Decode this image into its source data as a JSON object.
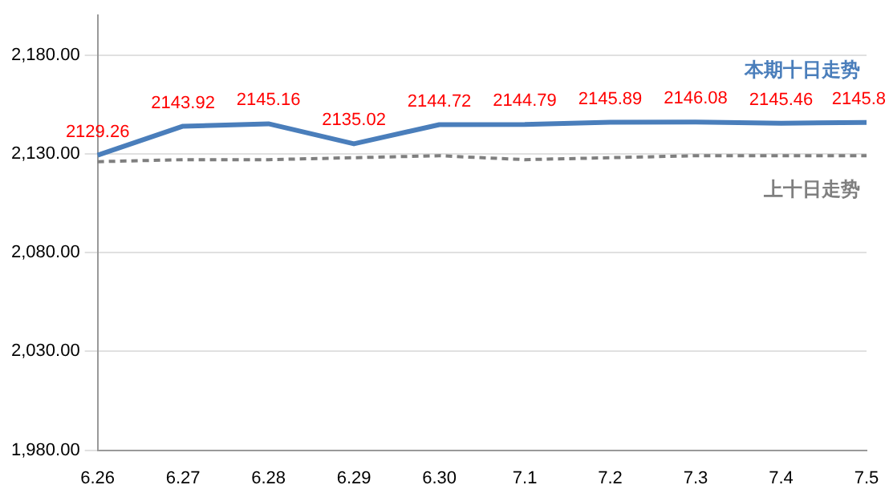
{
  "chart_data": {
    "type": "line",
    "categories": [
      "6.26",
      "6.27",
      "6.28",
      "6.29",
      "6.30",
      "7.1",
      "7.2",
      "7.3",
      "7.4",
      "7.5"
    ],
    "series": [
      {
        "name": "本期十日走势",
        "color": "#4a7ebb",
        "values": [
          2129.26,
          2143.92,
          2145.16,
          2135.02,
          2144.72,
          2144.79,
          2145.89,
          2146.08,
          2145.46,
          2145.8
        ],
        "value_labels": [
          "2129.26",
          "2143.92",
          "2145.16",
          "2135.02",
          "2144.72",
          "2144.79",
          "2145.89",
          "2146.08",
          "2145.46",
          "2145.8"
        ]
      },
      {
        "name": "上十日走势",
        "color": "#7f7f7f",
        "line_style": "dashed",
        "values": [
          2126,
          2127,
          2127,
          2128,
          2129,
          2127,
          2128,
          2129,
          2129,
          2129
        ]
      }
    ],
    "ylim": [
      1980,
      2200
    ],
    "yticks": [
      {
        "value": 1980,
        "label": "1,980.00"
      },
      {
        "value": 2030,
        "label": "2,030.00"
      },
      {
        "value": 2080,
        "label": "2,080.00"
      },
      {
        "value": 2130,
        "label": "2,130.00"
      },
      {
        "value": 2180,
        "label": "2,180.00"
      }
    ],
    "grid": "y",
    "legend": false,
    "marker": "none"
  }
}
